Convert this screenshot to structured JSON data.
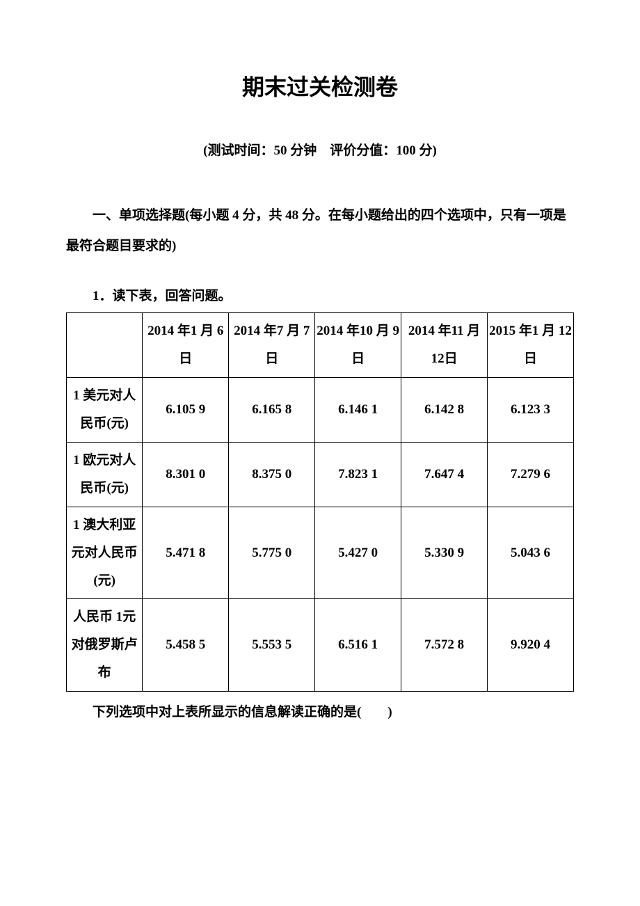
{
  "document": {
    "title": "期末过关检测卷",
    "subtitle": "(测试时间：50 分钟　评价分值：100 分)",
    "section_header": "一、单项选择题(每小题 4 分，共 48 分。在每小题给出的四个选项中，只有一项是最符合题目要求的)",
    "question_prompt": "1．读下表，回答问题。",
    "footer_text": "下列选项中对上表所显示的信息解读正确的是(　　)"
  },
  "table": {
    "type": "table",
    "background_color": "#ffffff",
    "border_color": "#000000",
    "font_size_pt": 14,
    "font_weight": "bold",
    "text_color": "#000000",
    "columns": [
      {
        "key": "label",
        "header": "",
        "width_pct": 15,
        "align": "center"
      },
      {
        "key": "c1",
        "header": "2014 年1 月 6 日",
        "width_pct": 17,
        "align": "center"
      },
      {
        "key": "c2",
        "header": "2014 年7 月 7 日",
        "width_pct": 17,
        "align": "center"
      },
      {
        "key": "c3",
        "header": "2014 年10 月 9 日",
        "width_pct": 17,
        "align": "center"
      },
      {
        "key": "c4",
        "header": "2014 年11 月 12日",
        "width_pct": 17,
        "align": "center"
      },
      {
        "key": "c5",
        "header": "2015 年1 月 12 日",
        "width_pct": 17,
        "align": "center"
      }
    ],
    "rows": [
      {
        "label": "1 美元对人民币(元)",
        "c1": "6.105 9",
        "c2": "6.165 8",
        "c3": "6.146 1",
        "c4": "6.142 8",
        "c5": "6.123 3"
      },
      {
        "label": "1 欧元对人民币(元)",
        "c1": "8.301 0",
        "c2": "8.375 0",
        "c3": "7.823 1",
        "c4": "7.647 4",
        "c5": "7.279 6"
      },
      {
        "label": "1 澳大利亚元对人民币(元)",
        "c1": "5.471 8",
        "c2": "5.775 0",
        "c3": "5.427 0",
        "c4": "5.330 9",
        "c5": "5.043 6"
      },
      {
        "label": "人民币 1元对俄罗斯卢布",
        "c1": "5.458 5",
        "c2": "5.553 5",
        "c3": "6.516 1",
        "c4": "7.572 8",
        "c5": "9.920 4"
      }
    ]
  }
}
